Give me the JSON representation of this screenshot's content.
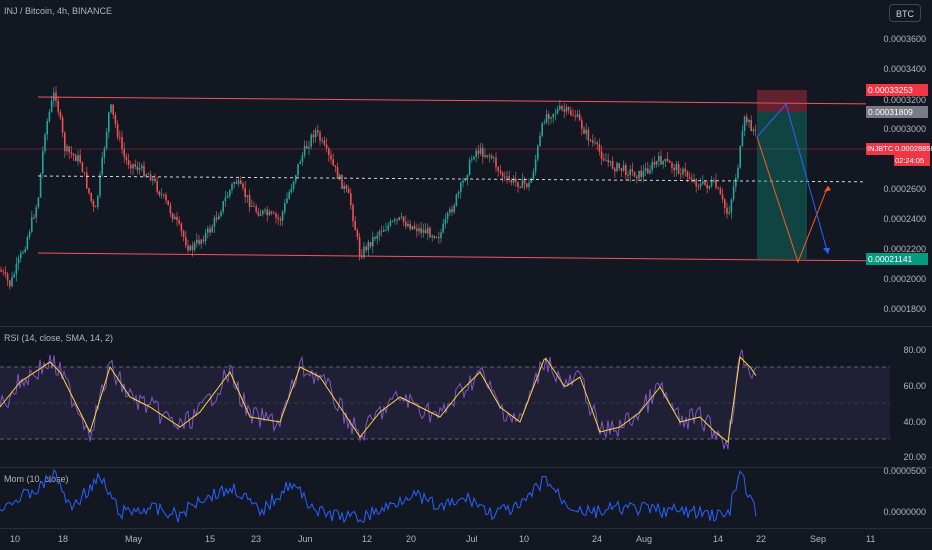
{
  "header": {
    "symbol_title": "INJ / Bitcoin, 4h, BINANCE",
    "currency_button": "BTC"
  },
  "price_axis": {
    "ticks": [
      "0.0003600",
      "0.0003400",
      "0.0003200",
      "0.0003000",
      "0.0002600",
      "0.0002400",
      "0.0002200",
      "0.0002000",
      "0.0001800"
    ],
    "tags": {
      "stop_label": "0.00033253",
      "entry_label": "0.00031809",
      "last_symbol": "INJBTC",
      "last_price": "0.00028858",
      "countdown": "02:24:05",
      "target_label": "0.00021141"
    },
    "colors": {
      "stop": "#f23645",
      "entry": "#787b86",
      "last": "#f23645",
      "target": "#089981"
    }
  },
  "rsi_pane": {
    "title": "RSI (14, close, SMA, 14, 2)",
    "ticks": [
      "80.00",
      "60.00",
      "40.00",
      "20.00"
    ]
  },
  "mom_pane": {
    "title": "Mom (10, close)",
    "ticks": [
      "0.0000500",
      "0.0000000"
    ]
  },
  "time_axis": {
    "ticks": [
      "10",
      "18",
      "May",
      "15",
      "23",
      "Jun",
      "12",
      "20",
      "Jul",
      "10",
      "24",
      "Aug",
      "14",
      "22",
      "Sep",
      "11"
    ]
  },
  "colors": {
    "background": "#131722",
    "up_candle": "#26a69a",
    "down_candle": "#ef5350",
    "channel_line": "#f7525f",
    "rsi_line": "#7e57c2",
    "rsi_ma": "#fdd835",
    "mom_line": "#2962ff",
    "projection_red": "#ff5722",
    "projection_blue": "#2962ff"
  }
}
